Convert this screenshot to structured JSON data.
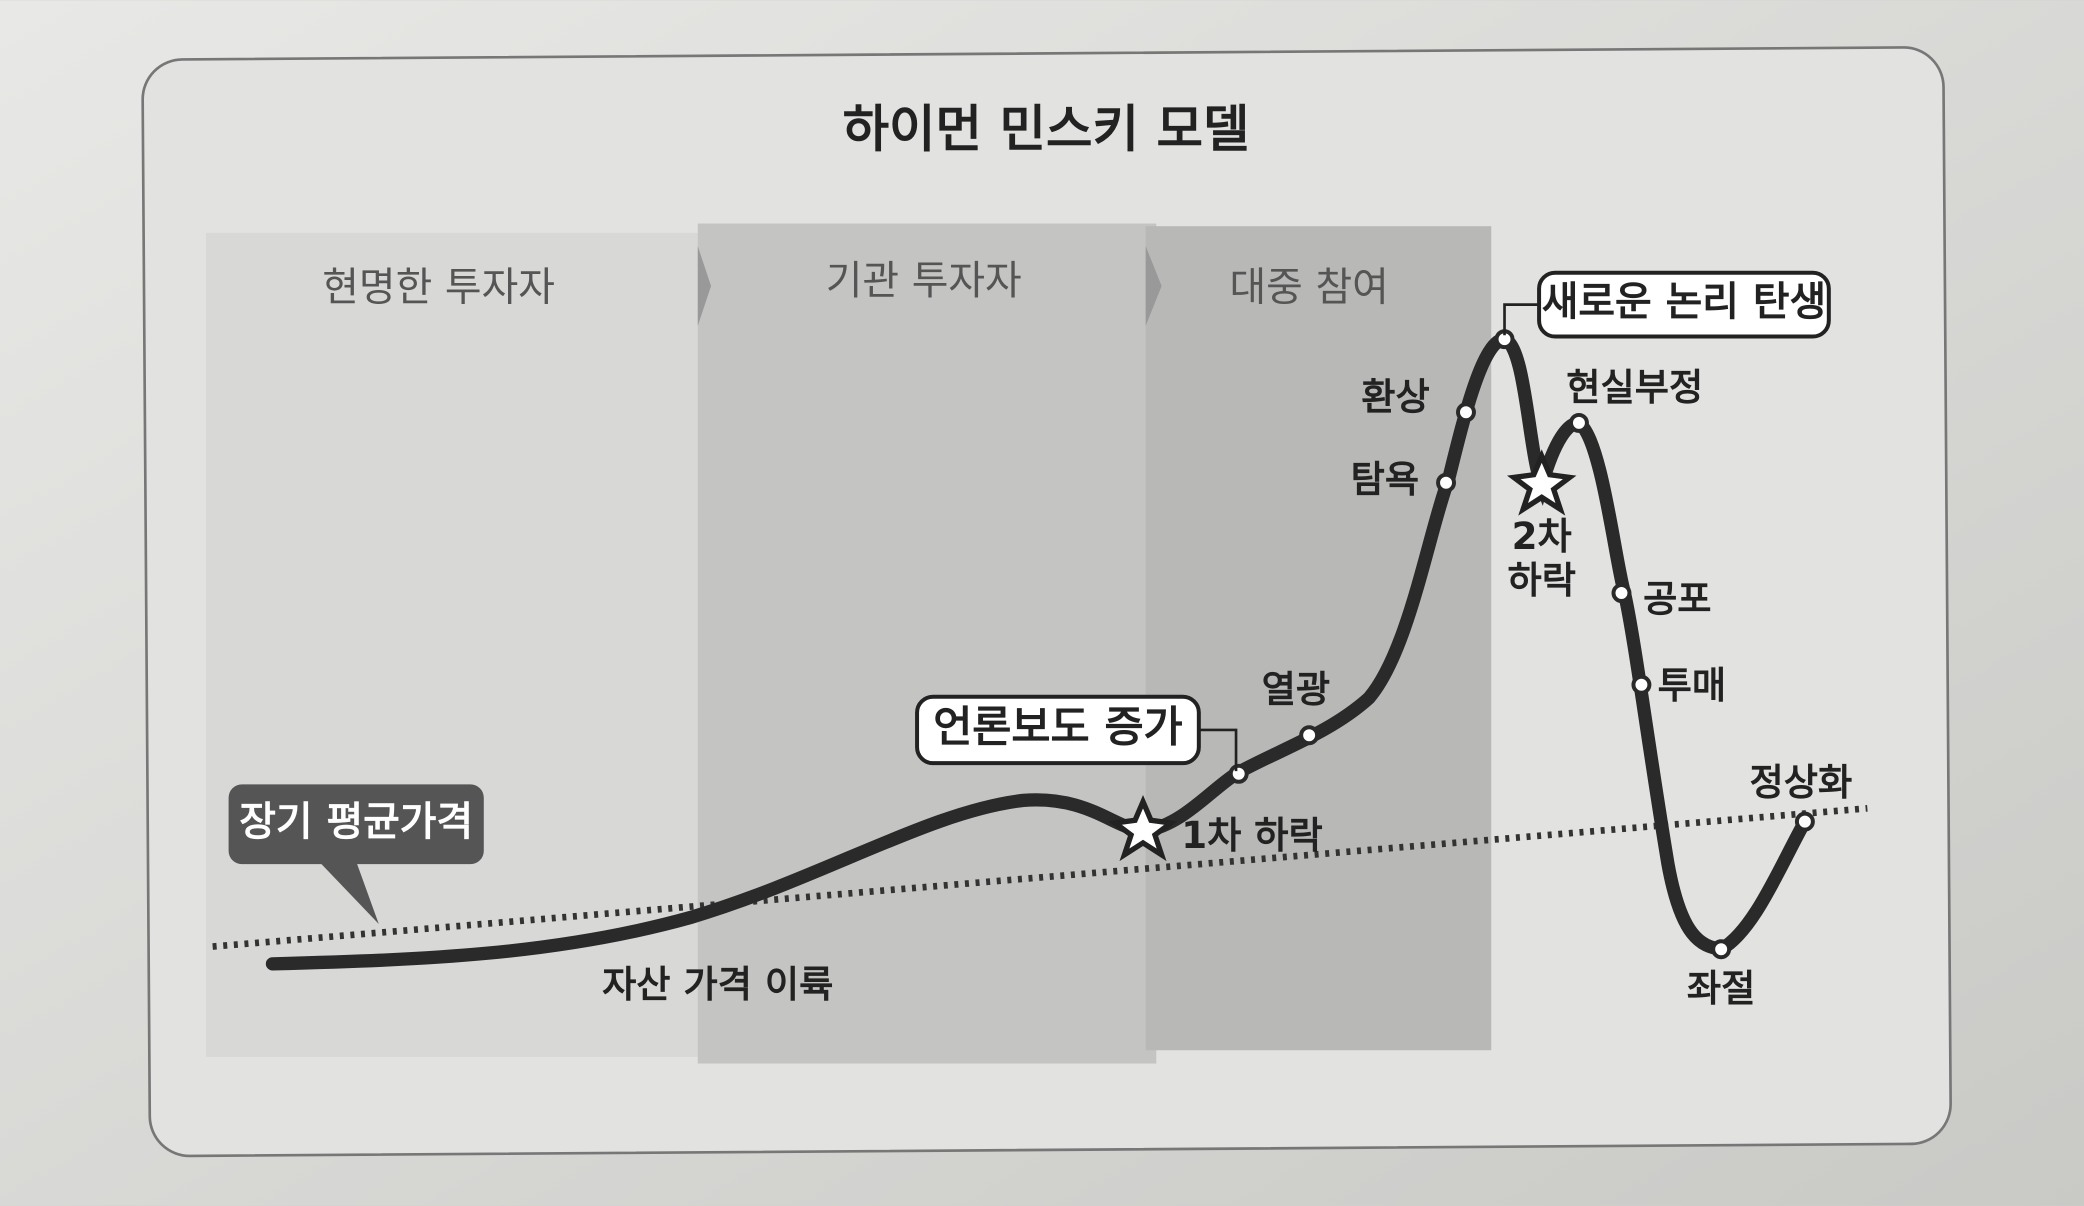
{
  "title": "하이먼 민스키 모델",
  "phases": [
    "현명한 투자자",
    "기관 투자자",
    "대중 참여"
  ],
  "callouts": {
    "long_term_average": "장기 평균가격",
    "media": "언론보도 증가",
    "new_paradigm": "새로운 논리 탄생"
  },
  "stages": {
    "takeoff": "자산 가격 이륙",
    "enthusiasm": "열광",
    "greed": "탐욕",
    "delusion": "환상",
    "denial": "현실부정",
    "fear": "공포",
    "capitulation": "투매",
    "despair": "좌절",
    "normalization": "정상화",
    "first_sell_off": "1차 하락",
    "second_sell_off": [
      "2차",
      "하락"
    ]
  }
}
